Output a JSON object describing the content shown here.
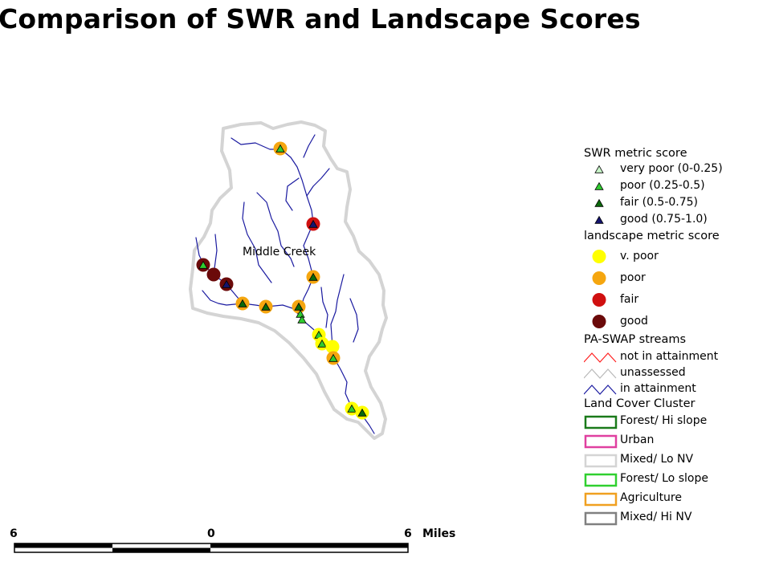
{
  "title": "Comparison of SWR and Landscape Scores",
  "map_label": "Middle Creek",
  "legend": {
    "swr": {
      "heading": "SWR metric score",
      "items": [
        {
          "label": "very poor (0-0.25)",
          "fill": "#c8f5c8"
        },
        {
          "label": "poor (0.25-0.5)",
          "fill": "#2fcc2f"
        },
        {
          "label": "fair (0.5-0.75)",
          "fill": "#0b6a0b"
        },
        {
          "label": "good (0.75-1.0)",
          "fill": "#14146e"
        }
      ]
    },
    "landscape": {
      "heading": "landscape metric score",
      "items": [
        {
          "label": "v. poor",
          "color": "#ffff00"
        },
        {
          "label": "poor",
          "color": "#f5a60f"
        },
        {
          "label": "fair",
          "color": "#d01010"
        },
        {
          "label": "good",
          "color": "#6b0a0a"
        }
      ]
    },
    "streams": {
      "heading": "PA-SWAP streams",
      "items": [
        {
          "label": "not in attainment",
          "color": "#ff2020"
        },
        {
          "label": "unassessed",
          "color": "#b8b8b8"
        },
        {
          "label": "in attainment",
          "color": "#1a1aa0"
        }
      ]
    },
    "landcover": {
      "heading": "Land Cover Cluster",
      "items": [
        {
          "label": "Forest/ Hi slope",
          "color": "#1a7a1a"
        },
        {
          "label": "Urban",
          "color": "#e040a0"
        },
        {
          "label": "Mixed/ Lo NV",
          "color": "#d4d4d4"
        },
        {
          "label": "Forest/ Lo slope",
          "color": "#30d030"
        },
        {
          "label": "Agriculture",
          "color": "#f0a020"
        },
        {
          "label": "Mixed/ Hi NV",
          "color": "#808080"
        }
      ]
    }
  },
  "scale_bar": {
    "left": "6",
    "center": "0",
    "right": "6",
    "unit": "Miles"
  }
}
